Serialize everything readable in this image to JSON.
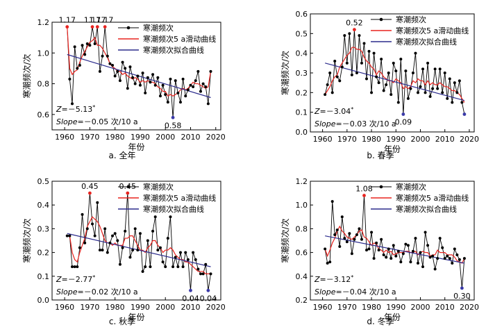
{
  "legend_labels": {
    "raw": "寒潮频次",
    "smooth": "寒潮频次5 a滑动曲线",
    "fit": "寒潮频次拟合曲线"
  },
  "colors": {
    "raw": "#000000",
    "smooth": "#e8231f",
    "fit": "#2b2b8c",
    "max_marker": "#e8231f",
    "min_marker": "#3a3aa8"
  },
  "chart_data": [
    {
      "type": "line",
      "panel_label": "a. 全年",
      "xlabel": "年份",
      "ylabel": "寒潮频次/次",
      "xlim": [
        1955,
        2022
      ],
      "ylim": [
        0.5,
        1.2
      ],
      "xticks": [
        1960,
        1970,
        1980,
        1990,
        2000,
        2010,
        2020
      ],
      "yticks": [
        0.6,
        0.8,
        1.0,
        1.2
      ],
      "ytick_labels": [
        "0.6",
        "0.8",
        "1.0",
        "1.2"
      ],
      "legend": [
        "寒潮频次",
        "寒潮频次5 a滑动曲线",
        "寒潮频次拟合曲线"
      ],
      "stat_z": "Z=－5.13*",
      "stat_slope": "Slope=－0.05 次/10 a",
      "x": [
        1961,
        1962,
        1963,
        1964,
        1965,
        1966,
        1967,
        1968,
        1969,
        1970,
        1971,
        1972,
        1973,
        1974,
        1975,
        1976,
        1977,
        1978,
        1979,
        1980,
        1981,
        1982,
        1983,
        1984,
        1985,
        1986,
        1987,
        1988,
        1989,
        1990,
        1991,
        1992,
        1993,
        1994,
        1995,
        1996,
        1997,
        1998,
        1999,
        2000,
        2001,
        2002,
        2003,
        2004,
        2005,
        2006,
        2007,
        2008,
        2009,
        2010,
        2011,
        2012,
        2013,
        2014,
        2015,
        2016,
        2017,
        2018
      ],
      "series": [
        {
          "name": "寒潮频次",
          "role": "raw",
          "values": [
            1.17,
            0.83,
            0.67,
            1.04,
            0.9,
            0.92,
            1.05,
            0.99,
            1.06,
            1.05,
            1.17,
            1.06,
            1.17,
            0.88,
            0.98,
            1.17,
            0.98,
            0.93,
            0.92,
            0.85,
            0.88,
            0.82,
            0.94,
            0.9,
            0.77,
            0.91,
            0.84,
            0.8,
            0.85,
            0.79,
            0.87,
            0.74,
            0.84,
            0.81,
            0.86,
            0.79,
            0.84,
            0.72,
            0.79,
            0.73,
            0.68,
            0.83,
            0.58,
            0.82,
            0.74,
            0.68,
            0.83,
            0.72,
            0.76,
            0.79,
            0.78,
            0.82,
            0.88,
            0.75,
            0.8,
            0.78,
            0.67,
            0.88
          ]
        },
        {
          "name": "寒潮频次5 a滑动曲线",
          "role": "smooth",
          "values": [
            1.17,
            0.9,
            0.86,
            0.88,
            0.89,
            0.94,
            0.98,
            1.01,
            1.04,
            1.07,
            1.08,
            1.1,
            1.05,
            1.05,
            1.03,
            1.0,
            0.97,
            0.93,
            0.91,
            0.9,
            0.88,
            0.88,
            0.86,
            0.87,
            0.85,
            0.84,
            0.83,
            0.84,
            0.83,
            0.81,
            0.82,
            0.81,
            0.82,
            0.81,
            0.81,
            0.8,
            0.78,
            0.77,
            0.75,
            0.75,
            0.72,
            0.73,
            0.72,
            0.73,
            0.74,
            0.76,
            0.77,
            0.76,
            0.77,
            0.79,
            0.81,
            0.8,
            0.8,
            0.79,
            0.78,
            0.77,
            0.78,
            0.88
          ]
        },
        {
          "name": "寒潮频次拟合曲线",
          "role": "fit",
          "x": [
            1961,
            2018
          ],
          "values": [
            0.99,
            0.71
          ]
        }
      ],
      "annotations": [
        {
          "x": 1961,
          "y": 1.17,
          "text": "1.17",
          "kind": "max"
        },
        {
          "x": 1971,
          "y": 1.17,
          "text": "1.17",
          "kind": "max"
        },
        {
          "x": 1973,
          "y": 1.17,
          "text": "1.17",
          "kind": "max"
        },
        {
          "x": 1976,
          "y": 1.17,
          "text": "1.17",
          "kind": "max"
        },
        {
          "x": 2003,
          "y": 0.58,
          "text": "0.58",
          "kind": "min"
        }
      ]
    },
    {
      "type": "line",
      "panel_label": "b. 春季",
      "xlabel": "年份",
      "ylabel": "寒潮频次/次",
      "xlim": [
        1955,
        2022
      ],
      "ylim": [
        0,
        0.6
      ],
      "xticks": [
        1960,
        1970,
        1980,
        1990,
        2000,
        2010,
        2020
      ],
      "yticks": [
        0,
        0.1,
        0.2,
        0.3,
        0.4,
        0.5,
        0.6
      ],
      "ytick_labels": [
        "0.0",
        "0.1",
        "0.2",
        "0.3",
        "0.4",
        "0.5",
        "0.6"
      ],
      "legend": [
        "寒潮频次",
        "寒潮频次5 a滑动曲线",
        "寒潮频次拟合曲线"
      ],
      "stat_z": "Z=－3.04*",
      "stat_slope": "Slope=－0.03 次/10 a",
      "x": [
        1961,
        1962,
        1963,
        1964,
        1965,
        1966,
        1967,
        1968,
        1969,
        1970,
        1971,
        1972,
        1973,
        1974,
        1975,
        1976,
        1977,
        1978,
        1979,
        1980,
        1981,
        1982,
        1983,
        1984,
        1985,
        1986,
        1987,
        1988,
        1989,
        1990,
        1991,
        1992,
        1993,
        1994,
        1995,
        1996,
        1997,
        1998,
        1999,
        2000,
        2001,
        2002,
        2003,
        2004,
        2005,
        2006,
        2007,
        2008,
        2009,
        2010,
        2011,
        2012,
        2013,
        2014,
        2015,
        2016,
        2017,
        2018
      ],
      "series": [
        {
          "name": "寒潮频次",
          "role": "raw",
          "values": [
            0.19,
            0.24,
            0.3,
            0.2,
            0.36,
            0.28,
            0.26,
            0.33,
            0.49,
            0.35,
            0.5,
            0.29,
            0.52,
            0.3,
            0.49,
            0.35,
            0.45,
            0.27,
            0.41,
            0.2,
            0.4,
            0.28,
            0.25,
            0.37,
            0.21,
            0.24,
            0.3,
            0.19,
            0.35,
            0.31,
            0.15,
            0.37,
            0.09,
            0.31,
            0.17,
            0.22,
            0.3,
            0.4,
            0.2,
            0.23,
            0.32,
            0.2,
            0.35,
            0.18,
            0.22,
            0.32,
            0.22,
            0.32,
            0.2,
            0.3,
            0.17,
            0.27,
            0.15,
            0.25,
            0.2,
            0.26,
            0.15,
            0.09
          ]
        },
        {
          "name": "寒潮频次5 a滑动曲线",
          "role": "smooth",
          "values": [
            0.19,
            0.21,
            0.23,
            0.26,
            0.28,
            0.29,
            0.33,
            0.35,
            0.37,
            0.39,
            0.4,
            0.43,
            0.43,
            0.42,
            0.42,
            0.41,
            0.38,
            0.36,
            0.35,
            0.33,
            0.32,
            0.29,
            0.31,
            0.3,
            0.28,
            0.27,
            0.26,
            0.26,
            0.25,
            0.27,
            0.26,
            0.25,
            0.22,
            0.23,
            0.22,
            0.23,
            0.26,
            0.25,
            0.27,
            0.26,
            0.26,
            0.24,
            0.26,
            0.24,
            0.25,
            0.24,
            0.24,
            0.25,
            0.24,
            0.23,
            0.23,
            0.22,
            0.21,
            0.21,
            0.2,
            0.19,
            0.17,
            0.15
          ]
        },
        {
          "name": "寒潮频次拟合曲线",
          "role": "fit",
          "x": [
            1961,
            2018
          ],
          "values": [
            0.35,
            0.16
          ]
        }
      ],
      "annotations": [
        {
          "x": 1973,
          "y": 0.52,
          "text": "0.52",
          "kind": "max"
        },
        {
          "x": 1993,
          "y": 0.09,
          "text": "0.09",
          "kind": "min"
        },
        {
          "x": 2018,
          "y": 0.09,
          "text": "",
          "kind": "min"
        }
      ]
    },
    {
      "type": "line",
      "panel_label": "c. 秋季",
      "xlabel": "年份",
      "ylabel": "寒潮频次/次",
      "xlim": [
        1955,
        2022
      ],
      "ylim": [
        0,
        0.5
      ],
      "xticks": [
        1960,
        1970,
        1980,
        1990,
        2000,
        2010,
        2020
      ],
      "yticks": [
        0,
        0.1,
        0.2,
        0.3,
        0.4,
        0.5
      ],
      "ytick_labels": [
        "0.0",
        "0.1",
        "0.2",
        "0.3",
        "0.4",
        "0.5"
      ],
      "legend": [
        "寒潮频次",
        "寒潮频次5 a滑动曲线",
        "寒潮频次拟合曲线"
      ],
      "stat_z": "Z=－2.77*",
      "stat_slope": "Slope=－0.02 次/10 a",
      "x": [
        1961,
        1962,
        1963,
        1964,
        1965,
        1966,
        1967,
        1968,
        1969,
        1970,
        1971,
        1972,
        1973,
        1974,
        1975,
        1976,
        1977,
        1978,
        1979,
        1980,
        1981,
        1982,
        1983,
        1984,
        1985,
        1986,
        1987,
        1988,
        1989,
        1990,
        1991,
        1992,
        1993,
        1994,
        1995,
        1996,
        1997,
        1998,
        1999,
        2000,
        2001,
        2002,
        2003,
        2004,
        2005,
        2006,
        2007,
        2008,
        2009,
        2010,
        2011,
        2012,
        2013,
        2014,
        2015,
        2016,
        2017,
        2018
      ],
      "series": [
        {
          "name": "寒潮频次",
          "role": "raw",
          "values": [
            0.27,
            0.27,
            0.14,
            0.14,
            0.14,
            0.22,
            0.36,
            0.24,
            0.3,
            0.45,
            0.32,
            0.27,
            0.41,
            0.21,
            0.21,
            0.3,
            0.2,
            0.24,
            0.27,
            0.28,
            0.25,
            0.15,
            0.22,
            0.29,
            0.45,
            0.18,
            0.21,
            0.3,
            0.21,
            0.28,
            0.12,
            0.14,
            0.25,
            0.14,
            0.29,
            0.35,
            0.21,
            0.22,
            0.16,
            0.14,
            0.26,
            0.35,
            0.14,
            0.18,
            0.14,
            0.2,
            0.14,
            0.2,
            0.17,
            0.04,
            0.2,
            0.17,
            0.13,
            0.11,
            0.11,
            0.15,
            0.04,
            0.11
          ]
        },
        {
          "name": "寒潮频次5 a滑动曲线",
          "role": "smooth",
          "values": [
            0.27,
            0.27,
            0.2,
            0.17,
            0.16,
            0.2,
            0.23,
            0.26,
            0.31,
            0.33,
            0.35,
            0.34,
            0.33,
            0.31,
            0.28,
            0.25,
            0.24,
            0.24,
            0.23,
            0.24,
            0.23,
            0.23,
            0.23,
            0.26,
            0.26,
            0.27,
            0.27,
            0.25,
            0.23,
            0.21,
            0.21,
            0.2,
            0.22,
            0.23,
            0.25,
            0.25,
            0.23,
            0.22,
            0.2,
            0.21,
            0.21,
            0.22,
            0.21,
            0.19,
            0.18,
            0.17,
            0.17,
            0.16,
            0.16,
            0.15,
            0.14,
            0.13,
            0.12,
            0.12,
            0.12,
            0.11,
            0.11,
            0.11
          ]
        },
        {
          "name": "寒潮频次拟合曲线",
          "role": "fit",
          "x": [
            1961,
            2018
          ],
          "values": [
            0.28,
            0.14
          ]
        }
      ],
      "annotations": [
        {
          "x": 1970,
          "y": 0.45,
          "text": "0.45",
          "kind": "max"
        },
        {
          "x": 1985,
          "y": 0.45,
          "text": "0.45",
          "kind": "max"
        },
        {
          "x": 2010,
          "y": 0.04,
          "text": "0.04",
          "kind": "min"
        },
        {
          "x": 2017,
          "y": 0.04,
          "text": "0.04",
          "kind": "min"
        }
      ]
    },
    {
      "type": "line",
      "panel_label": "d. 冬季",
      "xlabel": "年份",
      "ylabel": "寒潮频次/次",
      "xlim": [
        1955,
        2022
      ],
      "ylim": [
        0.2,
        1.2
      ],
      "xticks": [
        1960,
        1970,
        1980,
        1990,
        2000,
        2010,
        2020
      ],
      "yticks": [
        0.2,
        0.4,
        0.6,
        0.8,
        1.0,
        1.2
      ],
      "ytick_labels": [
        "0.2",
        "0.4",
        "0.6",
        "0.8",
        "1.0",
        "1.2"
      ],
      "legend": [
        "寒潮频次",
        "寒潮频次5 a滑动曲线",
        "寒潮频次拟合曲线"
      ],
      "stat_z": "Z=－3.12*",
      "stat_slope": "Slope=－0.04 次/10 a",
      "x": [
        1961,
        1962,
        1963,
        1964,
        1965,
        1966,
        1967,
        1968,
        1969,
        1970,
        1971,
        1972,
        1973,
        1974,
        1975,
        1976,
        1977,
        1978,
        1979,
        1980,
        1981,
        1982,
        1983,
        1984,
        1985,
        1986,
        1987,
        1988,
        1989,
        1990,
        1991,
        1992,
        1993,
        1994,
        1995,
        1996,
        1997,
        1998,
        1999,
        2000,
        2001,
        2002,
        2003,
        2004,
        2005,
        2006,
        2007,
        2008,
        2009,
        2010,
        2011,
        2012,
        2013,
        2014,
        2015,
        2016,
        2017,
        2018
      ],
      "series": [
        {
          "name": "寒潮频次",
          "role": "raw",
          "values": [
            0.63,
            0.51,
            0.52,
            1.03,
            0.75,
            0.79,
            0.65,
            0.9,
            0.72,
            0.69,
            0.76,
            0.59,
            0.71,
            0.75,
            0.8,
            0.71,
            1.08,
            0.62,
            0.63,
            0.77,
            0.55,
            0.68,
            0.62,
            0.71,
            0.58,
            0.56,
            0.63,
            0.55,
            0.66,
            0.57,
            0.61,
            0.52,
            0.59,
            0.67,
            0.66,
            0.52,
            0.61,
            0.72,
            0.51,
            0.6,
            0.48,
            0.77,
            0.66,
            0.56,
            0.57,
            0.46,
            0.55,
            0.72,
            0.64,
            0.55,
            0.57,
            0.55,
            0.51,
            0.63,
            0.58,
            0.54,
            0.3,
            0.55
          ]
        },
        {
          "name": "寒潮频次5 a滑动曲线",
          "role": "smooth",
          "values": [
            0.63,
            0.57,
            0.62,
            0.68,
            0.72,
            0.78,
            0.82,
            0.78,
            0.76,
            0.73,
            0.72,
            0.71,
            0.73,
            0.75,
            0.78,
            0.79,
            0.73,
            0.72,
            0.69,
            0.66,
            0.68,
            0.67,
            0.63,
            0.62,
            0.6,
            0.62,
            0.6,
            0.61,
            0.58,
            0.59,
            0.6,
            0.6,
            0.6,
            0.61,
            0.61,
            0.6,
            0.6,
            0.61,
            0.58,
            0.6,
            0.61,
            0.6,
            0.6,
            0.57,
            0.58,
            0.58,
            0.62,
            0.6,
            0.6,
            0.6,
            0.58,
            0.58,
            0.58,
            0.56,
            0.53,
            0.52,
            0.51,
            0.55
          ]
        },
        {
          "name": "寒潮频次拟合曲线",
          "role": "fit",
          "x": [
            1961,
            2018
          ],
          "values": [
            0.74,
            0.51
          ]
        }
      ],
      "annotations": [
        {
          "x": 1977,
          "y": 1.08,
          "text": "1.08",
          "kind": "max"
        },
        {
          "x": 2017,
          "y": 0.3,
          "text": "0.30",
          "kind": "min"
        }
      ]
    }
  ]
}
